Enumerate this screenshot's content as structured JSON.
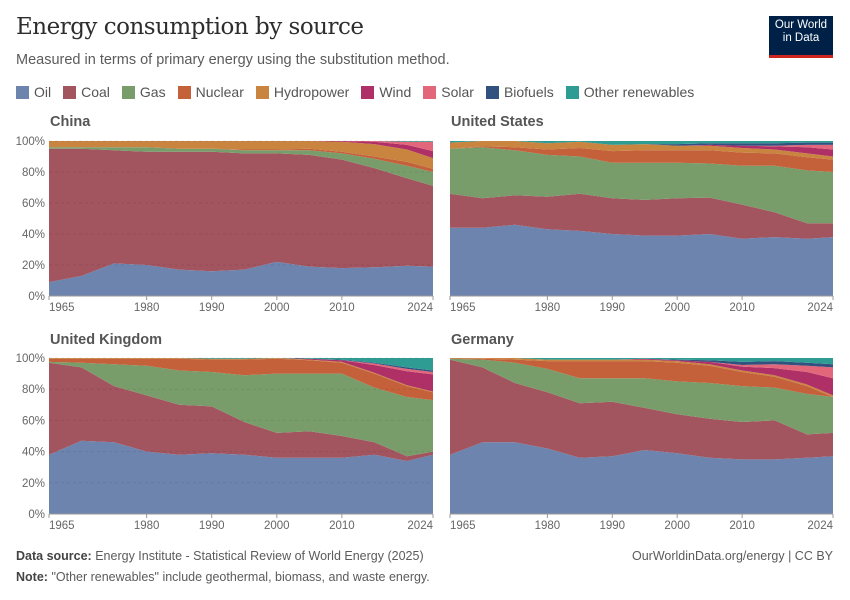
{
  "header": {
    "title": "Energy consumption by source",
    "subtitle": "Measured in terms of primary energy using the substitution method.",
    "logo_text": "Our World in Data"
  },
  "footer": {
    "source_label": "Data source:",
    "source": "Energy Institute - Statistical Review of World Energy (2025)",
    "note_label": "Note:",
    "note": "\"Other renewables\" include geothermal, biomass, and waste energy.",
    "link": "OurWorldinData.org/energy | CC BY"
  },
  "chart_data": {
    "type": "area",
    "stacked": true,
    "ylim": [
      0,
      100
    ],
    "yticks": [
      "0%",
      "20%",
      "40%",
      "60%",
      "80%",
      "100%"
    ],
    "xticks": [
      "1965",
      "1980",
      "1990",
      "2000",
      "2010",
      "2024"
    ],
    "legend_placement": "top",
    "series_names": [
      "Oil",
      "Coal",
      "Gas",
      "Nuclear",
      "Hydropower",
      "Wind",
      "Solar",
      "Biofuels",
      "Other renewables"
    ],
    "colors": [
      "#6d84ae",
      "#a2545f",
      "#789d6a",
      "#c4603a",
      "#c98440",
      "#af3066",
      "#e2677a",
      "#33517e",
      "#2f9c94"
    ],
    "x": [
      1965,
      1970,
      1975,
      1980,
      1985,
      1990,
      1995,
      2000,
      2005,
      2010,
      2015,
      2020,
      2024
    ],
    "panels": [
      {
        "title": "China",
        "values": [
          [
            9,
            86,
            1,
            0,
            4,
            0,
            0,
            0,
            0
          ],
          [
            13,
            82,
            1,
            0,
            4,
            0,
            0,
            0,
            0
          ],
          [
            21,
            73,
            2,
            0,
            4,
            0,
            0,
            0,
            0
          ],
          [
            20,
            73,
            3,
            0,
            4,
            0,
            0,
            0,
            0
          ],
          [
            17,
            76,
            2,
            0,
            5,
            0,
            0,
            0,
            0
          ],
          [
            16,
            77,
            2,
            0,
            5,
            0,
            0,
            0,
            0
          ],
          [
            17,
            75,
            2,
            0.5,
            5.5,
            0,
            0,
            0,
            0
          ],
          [
            22,
            70,
            2,
            0.5,
            5.5,
            0,
            0,
            0,
            0
          ],
          [
            19,
            72,
            3,
            1,
            5,
            0,
            0,
            0,
            0
          ],
          [
            18,
            70,
            4,
            1,
            6.5,
            0.5,
            0,
            0,
            0
          ],
          [
            18.5,
            64,
            6,
            1.5,
            8,
            1.5,
            0.5,
            0,
            0
          ],
          [
            19.5,
            56.5,
            8,
            2.5,
            8,
            3,
            2,
            0,
            0.5
          ],
          [
            19,
            52,
            9,
            2,
            7,
            4.5,
            6,
            0,
            0.5
          ]
        ]
      },
      {
        "title": "United States",
        "values": [
          [
            44,
            22,
            29,
            0,
            4,
            0,
            0,
            0,
            1
          ],
          [
            44,
            19,
            33,
            0.5,
            3.5,
            0,
            0,
            0,
            0
          ],
          [
            46,
            19,
            29,
            2,
            4,
            0,
            0,
            0,
            0
          ],
          [
            43,
            21,
            27,
            3.5,
            4,
            0,
            0,
            0,
            1.5
          ],
          [
            42,
            24,
            24,
            5.5,
            4,
            0,
            0,
            0,
            0.5
          ],
          [
            40,
            23,
            23,
            7.5,
            4,
            0,
            0,
            0,
            2.5
          ],
          [
            39,
            23,
            24,
            8,
            4,
            0,
            0,
            0,
            2
          ],
          [
            39,
            24,
            23,
            8,
            3,
            0,
            0,
            1,
            2
          ],
          [
            40,
            23.5,
            22,
            8.5,
            3,
            0.5,
            0,
            1,
            1.5
          ],
          [
            37,
            22,
            25,
            8.5,
            3,
            1.5,
            0,
            1.5,
            1.5
          ],
          [
            38,
            16,
            30,
            8,
            2.5,
            2,
            0.5,
            1.5,
            1.5
          ],
          [
            37,
            10,
            34,
            8.5,
            2.5,
            4,
            1.5,
            1.5,
            1
          ],
          [
            38,
            9,
            33,
            8,
            2,
            4.5,
            3,
            1.5,
            1
          ]
        ]
      },
      {
        "title": "United Kingdom",
        "values": [
          [
            38,
            59,
            0.5,
            2,
            0.5,
            0,
            0,
            0,
            0
          ],
          [
            47,
            47,
            3,
            2.5,
            0.5,
            0,
            0,
            0,
            0
          ],
          [
            46,
            36,
            14,
            3.5,
            0.5,
            0,
            0,
            0,
            0
          ],
          [
            40,
            36,
            19,
            4.5,
            0.5,
            0,
            0,
            0,
            0
          ],
          [
            38,
            32,
            22,
            7.5,
            0.5,
            0,
            0,
            0,
            0
          ],
          [
            39,
            30,
            22,
            8,
            0.5,
            0,
            0,
            0,
            0.5
          ],
          [
            38,
            21,
            30,
            10,
            0.5,
            0,
            0,
            0,
            0.5
          ],
          [
            36,
            16,
            38,
            9.5,
            0.5,
            0,
            0,
            0,
            0
          ],
          [
            36,
            17,
            37,
            8.5,
            0.5,
            0.5,
            0,
            0,
            0.5
          ],
          [
            36,
            14,
            40,
            7,
            0.5,
            1,
            0,
            0.5,
            1
          ],
          [
            38,
            8,
            35,
            9,
            0.5,
            5,
            1,
            0.5,
            3
          ],
          [
            34,
            3,
            38,
            7,
            0.5,
            9,
            1.5,
            1,
            6
          ],
          [
            38,
            2,
            33,
            5,
            0.5,
            11,
            1.5,
            1,
            8
          ]
        ]
      },
      {
        "title": "Germany",
        "values": [
          [
            38,
            61,
            0.5,
            0.2,
            0.3,
            0,
            0,
            0,
            0
          ],
          [
            46,
            48,
            5,
            0.5,
            0.5,
            0,
            0,
            0,
            0
          ],
          [
            46,
            38,
            13,
            2,
            1,
            0,
            0,
            0,
            0
          ],
          [
            42,
            36,
            15,
            5,
            1,
            0,
            0,
            0,
            1
          ],
          [
            36,
            35,
            16,
            11,
            1,
            0,
            0,
            0,
            1
          ],
          [
            37,
            35,
            15,
            11,
            1,
            0,
            0,
            0,
            1
          ],
          [
            41,
            27,
            19,
            11,
            1,
            0.5,
            0,
            0,
            0.5
          ],
          [
            39,
            25,
            21,
            12,
            1,
            0.5,
            0,
            0.5,
            1
          ],
          [
            36,
            25,
            23,
            11,
            1,
            1.5,
            0,
            1,
            1.5
          ],
          [
            35,
            24,
            23,
            9,
            1,
            2.5,
            1,
            2,
            2.5
          ],
          [
            35,
            25,
            21,
            7,
            1,
            4.5,
            2.5,
            2,
            2
          ],
          [
            36,
            15,
            26,
            5,
            1,
            8,
            4,
            2,
            3
          ],
          [
            37,
            15,
            23,
            0,
            1,
            11,
            7,
            2,
            4
          ]
        ]
      }
    ]
  }
}
